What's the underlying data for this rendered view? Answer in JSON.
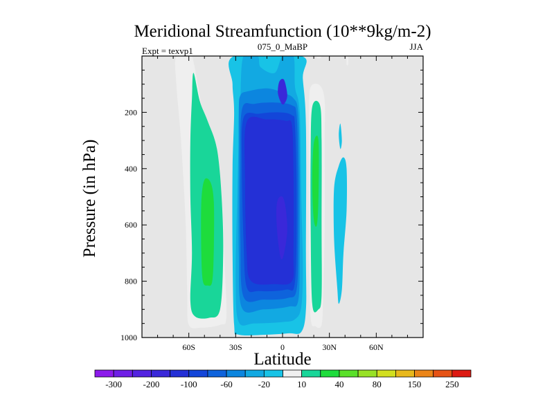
{
  "chart_data": {
    "type": "heatmap",
    "subtype": "filled-contour",
    "title": "Meridional Streamfunction (10**9kg/m-2)",
    "left_label": "Expt = texvp1",
    "center_label": "075_0_MaBP",
    "right_label": "JJA",
    "xlabel": "Latitude",
    "ylabel": "Pressure (in hPa)",
    "x_range": [
      -90,
      90
    ],
    "y_range": [
      0,
      1000
    ],
    "y_inverted": true,
    "x_ticks": [
      {
        "value": -60,
        "label": "60S"
      },
      {
        "value": -30,
        "label": "30S"
      },
      {
        "value": 0,
        "label": "0"
      },
      {
        "value": 30,
        "label": "30N"
      },
      {
        "value": 60,
        "label": "60N"
      }
    ],
    "y_ticks": [
      {
        "value": 200,
        "label": "200"
      },
      {
        "value": 400,
        "label": "400"
      },
      {
        "value": 600,
        "label": "600"
      },
      {
        "value": 800,
        "label": "800"
      },
      {
        "value": 1000,
        "label": "1000"
      }
    ],
    "background_color": "#e6e6e6",
    "levels": [
      -300,
      -250,
      -200,
      -150,
      -100,
      -80,
      -60,
      -40,
      -20,
      -10,
      10,
      20,
      40,
      60,
      80,
      100,
      150,
      200,
      250,
      300
    ],
    "colorbar_labels": [
      "-300",
      "-200",
      "-100",
      "-60",
      "-20",
      "10",
      "40",
      "80",
      "150",
      "250"
    ],
    "colors": [
      "#8c1aeb",
      "#6f1fe6",
      "#5323e0",
      "#3a28d9",
      "#2430d6",
      "#1346d9",
      "#0e63dc",
      "#0c86df",
      "#12a9e2",
      "#18c3e6",
      "#efefef",
      "#19d699",
      "#1edc3c",
      "#5ae02a",
      "#98e126",
      "#d2df20",
      "#e8b81c",
      "#eb8518",
      "#e65315",
      "#dd1a12"
    ],
    "features": [
      {
        "name": "sh-cell-outer",
        "value": 10,
        "points": [
          [
            -68,
            0
          ],
          [
            -59,
            0
          ],
          [
            -57,
            20
          ],
          [
            -54,
            110
          ],
          [
            -51,
            200
          ],
          [
            -45,
            300
          ],
          [
            -39,
            500
          ],
          [
            -37,
            750
          ],
          [
            -36,
            930
          ],
          [
            -40,
            955
          ],
          [
            -52,
            965
          ],
          [
            -60,
            955
          ],
          [
            -61,
            850
          ],
          [
            -62,
            600
          ],
          [
            -65,
            300
          ],
          [
            -68,
            100
          ]
        ]
      },
      {
        "name": "sh-cell-20",
        "value": 20,
        "points": [
          [
            -57,
            60
          ],
          [
            -53,
            160
          ],
          [
            -48,
            230
          ],
          [
            -42,
            330
          ],
          [
            -39,
            500
          ],
          [
            -38,
            700
          ],
          [
            -40,
            900
          ],
          [
            -47,
            930
          ],
          [
            -56,
            925
          ],
          [
            -59,
            870
          ],
          [
            -58,
            700
          ],
          [
            -59,
            500
          ],
          [
            -59,
            300
          ],
          [
            -58,
            150
          ]
        ]
      },
      {
        "name": "sh-cell-40",
        "value": 40,
        "points": [
          [
            -50,
            440
          ],
          [
            -46,
            450
          ],
          [
            -44,
            520
          ],
          [
            -44,
            680
          ],
          [
            -45,
            800
          ],
          [
            -48,
            815
          ],
          [
            -51,
            800
          ],
          [
            -52,
            700
          ],
          [
            -52,
            520
          ]
        ]
      },
      {
        "name": "eq-cell-outer",
        "value": -10,
        "points": [
          [
            -31,
            0
          ],
          [
            12,
            0
          ],
          [
            13,
            80
          ],
          [
            15,
            250
          ],
          [
            15,
            700
          ],
          [
            15,
            900
          ],
          [
            12,
            980
          ],
          [
            4,
            985
          ],
          [
            -10,
            990
          ],
          [
            -28,
            990
          ],
          [
            -31,
            955
          ],
          [
            -32,
            700
          ],
          [
            -32,
            400
          ],
          [
            -31,
            200
          ],
          [
            -32,
            100
          ]
        ]
      },
      {
        "name": "eq-cell-20",
        "value": -20,
        "points": [
          [
            -25,
            0
          ],
          [
            -16,
            0
          ],
          [
            -14,
            40
          ],
          [
            -5,
            60
          ],
          [
            0,
            0
          ],
          [
            7,
            0
          ],
          [
            8,
            110
          ],
          [
            11,
            200
          ],
          [
            12,
            500
          ],
          [
            13,
            750
          ],
          [
            12,
            890
          ],
          [
            8,
            935
          ],
          [
            0,
            945
          ],
          [
            -18,
            950
          ],
          [
            -28,
            945
          ],
          [
            -30,
            800
          ],
          [
            -29,
            500
          ],
          [
            -28,
            300
          ],
          [
            -27,
            150
          ]
        ]
      },
      {
        "name": "eq-cell-40",
        "value": -40,
        "points": [
          [
            -27,
            140
          ],
          [
            -22,
            125
          ],
          [
            -10,
            115
          ],
          [
            0,
            130
          ],
          [
            7,
            150
          ],
          [
            10,
            200
          ],
          [
            11,
            400
          ],
          [
            11,
            700
          ],
          [
            10,
            870
          ],
          [
            4,
            890
          ],
          [
            -12,
            900
          ],
          [
            -26,
            895
          ],
          [
            -28,
            700
          ],
          [
            -28,
            400
          ],
          [
            -28,
            200
          ]
        ]
      },
      {
        "name": "eq-cell-60",
        "value": -60,
        "points": [
          [
            -26,
            190
          ],
          [
            -18,
            170
          ],
          [
            -5,
            165
          ],
          [
            6,
            175
          ],
          [
            9,
            210
          ],
          [
            10,
            400
          ],
          [
            10,
            650
          ],
          [
            9,
            830
          ],
          [
            3,
            860
          ],
          [
            -12,
            865
          ],
          [
            -25,
            855
          ],
          [
            -27,
            650
          ],
          [
            -27,
            400
          ]
        ]
      },
      {
        "name": "eq-cell-80",
        "value": -80,
        "points": [
          [
            -25,
            220
          ],
          [
            -15,
            205
          ],
          [
            -3,
            200
          ],
          [
            6,
            210
          ],
          [
            8,
            250
          ],
          [
            9,
            500
          ],
          [
            8,
            800
          ],
          [
            2,
            830
          ],
          [
            -15,
            835
          ],
          [
            -23,
            820
          ],
          [
            -25,
            650
          ],
          [
            -26,
            400
          ]
        ]
      },
      {
        "name": "eq-cell-100",
        "value": -100,
        "points": [
          [
            -23,
            235
          ],
          [
            -10,
            225
          ],
          [
            2,
            230
          ],
          [
            6,
            245
          ],
          [
            7,
            400
          ],
          [
            7,
            700
          ],
          [
            6,
            800
          ],
          [
            -5,
            810
          ],
          [
            -20,
            800
          ],
          [
            -23,
            700
          ],
          [
            -24,
            450
          ]
        ]
      },
      {
        "name": "eq-cell-150",
        "value": -150,
        "points": [
          [
            -3,
            510
          ],
          [
            0,
            500
          ],
          [
            2,
            540
          ],
          [
            3,
            620
          ],
          [
            1,
            700
          ],
          [
            -1,
            720
          ],
          [
            -3,
            650
          ],
          [
            -4,
            560
          ]
        ]
      },
      {
        "name": "eq-cell-150-b",
        "value": -150,
        "points": [
          [
            -2,
            90
          ],
          [
            1,
            85
          ],
          [
            3,
            140
          ],
          [
            1,
            170
          ],
          [
            -1,
            165
          ],
          [
            -3,
            130
          ]
        ]
      },
      {
        "name": "nh-cell-outer",
        "value": 10,
        "points": [
          [
            18,
            110
          ],
          [
            24,
            105
          ],
          [
            27,
            160
          ],
          [
            27,
            300
          ],
          [
            27,
            600
          ],
          [
            26,
            850
          ],
          [
            25,
            955
          ],
          [
            21,
            960
          ],
          [
            18,
            930
          ],
          [
            17,
            700
          ],
          [
            17,
            400
          ],
          [
            17,
            200
          ]
        ]
      },
      {
        "name": "nh-cell-20",
        "value": 20,
        "points": [
          [
            19,
            180
          ],
          [
            24,
            175
          ],
          [
            25,
            300
          ],
          [
            25,
            600
          ],
          [
            25,
            850
          ],
          [
            23,
            900
          ],
          [
            19,
            880
          ],
          [
            18,
            600
          ],
          [
            18,
            350
          ]
        ]
      },
      {
        "name": "nh-cell-40",
        "value": 40,
        "points": [
          [
            20,
            310
          ],
          [
            23,
            300
          ],
          [
            23,
            500
          ],
          [
            22,
            600
          ],
          [
            20,
            580
          ],
          [
            19,
            450
          ]
        ]
      },
      {
        "name": "nh-neg-cell",
        "value": -10,
        "points": [
          [
            33,
            470
          ],
          [
            36,
            390
          ],
          [
            39,
            360
          ],
          [
            41,
            400
          ],
          [
            41,
            550
          ],
          [
            39,
            700
          ],
          [
            38,
            830
          ],
          [
            36,
            880
          ],
          [
            35,
            820
          ],
          [
            33,
            650
          ]
        ]
      },
      {
        "name": "nh-neg-sliver",
        "value": -10,
        "points": [
          [
            36,
            280
          ],
          [
            37,
            240
          ],
          [
            38,
            300
          ],
          [
            37,
            330
          ]
        ]
      },
      {
        "name": "nh-top-speck",
        "value": 10,
        "points": [
          [
            22,
            0
          ],
          [
            25,
            0
          ],
          [
            24,
            8
          ],
          [
            22,
            6
          ]
        ]
      },
      {
        "name": "nh-top-speck-2",
        "value": 10,
        "points": [
          [
            41,
            0
          ],
          [
            42,
            0
          ],
          [
            42,
            30
          ],
          [
            41,
            30
          ]
        ]
      }
    ]
  }
}
